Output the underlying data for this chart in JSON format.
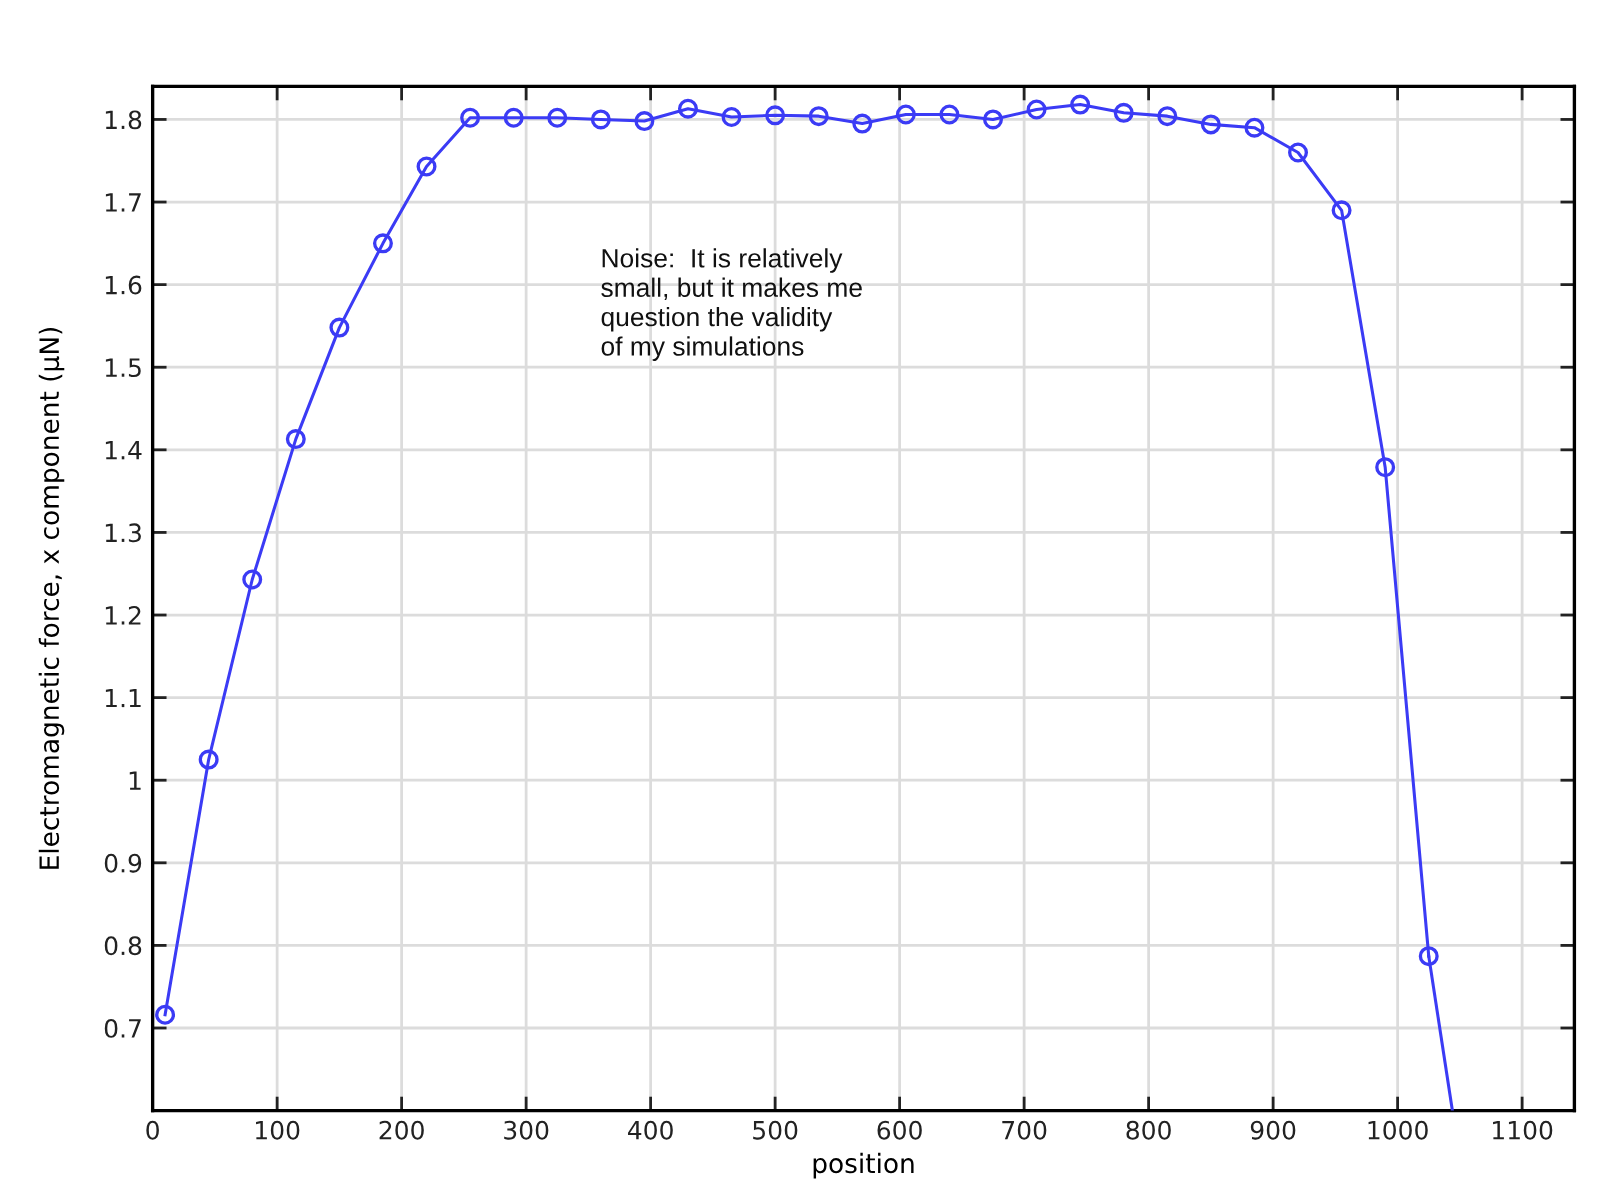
{
  "chart_data": {
    "type": "line",
    "xlabel": "position",
    "ylabel": "Electromagnetic force, x component (µN)",
    "annotations": [
      "Noise:  It is relatively\nsmall, but it makes me\nquestion the validity\nof my simulations"
    ],
    "series": [
      {
        "color": "#3b3bf5",
        "marker": "circle",
        "line_style": "solid",
        "x": [
          10,
          45,
          80,
          115,
          150,
          185,
          220,
          255,
          290,
          325,
          360,
          395,
          430,
          465,
          500,
          535,
          570,
          605,
          640,
          675,
          710,
          745,
          780,
          815,
          850,
          885,
          920,
          955,
          990,
          1025
        ],
        "values": [
          0.716,
          1.025,
          1.243,
          1.413,
          1.548,
          1.65,
          1.743,
          1.802,
          1.802,
          1.802,
          1.8,
          1.798,
          1.813,
          1.803,
          1.805,
          1.804,
          1.795,
          1.806,
          1.806,
          1.8,
          1.812,
          1.818,
          1.808,
          1.804,
          1.794,
          1.79,
          1.76,
          1.69,
          1.379,
          0.787
        ]
      },
      {
        "color": "#3b3bf5",
        "marker": "none",
        "line_style": "solid",
        "x": [
          1025,
          1044
        ],
        "values": [
          0.787,
          0.6
        ]
      }
    ],
    "xlim": [
      0,
      1142
    ],
    "xticks": [
      0,
      100,
      200,
      300,
      400,
      500,
      600,
      700,
      800,
      900,
      1000,
      1100
    ],
    "ylim": [
      0.6,
      1.84
    ],
    "yticks": [
      0.7,
      0.8,
      0.9,
      1,
      1.1,
      1.2,
      1.3,
      1.4,
      1.5,
      1.6,
      1.7,
      1.8
    ],
    "grid": true
  }
}
